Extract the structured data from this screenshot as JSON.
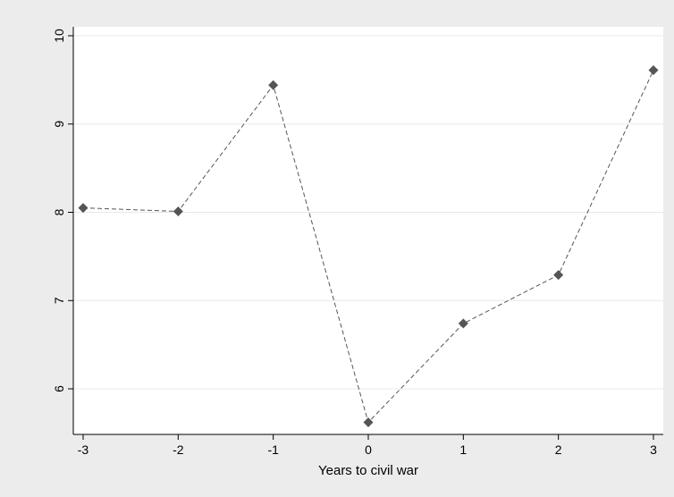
{
  "chart_data": {
    "type": "line",
    "title": "",
    "xlabel": "Years to civil war",
    "ylabel": "",
    "x": [
      -3,
      -2,
      -1,
      0,
      1,
      2,
      3
    ],
    "xticks": [
      "-3",
      "-2",
      "-1",
      "0",
      "1",
      "2",
      "3"
    ],
    "yticks": [
      "6",
      "7",
      "8",
      "9",
      "10"
    ],
    "xlim": [
      -3,
      3
    ],
    "ylim": [
      6,
      10
    ],
    "series": [
      {
        "values": [
          8.05,
          8.01,
          9.44,
          5.62,
          6.74,
          7.29,
          9.61
        ],
        "color": "#555555",
        "line_style": "dashed",
        "marker": "diamond"
      }
    ],
    "grid": true,
    "legend": "none",
    "colors": {
      "outer_background": "#ececec",
      "plot_background": "#ffffff",
      "gridline": "#e8e8e8",
      "axis": "#000000"
    }
  }
}
